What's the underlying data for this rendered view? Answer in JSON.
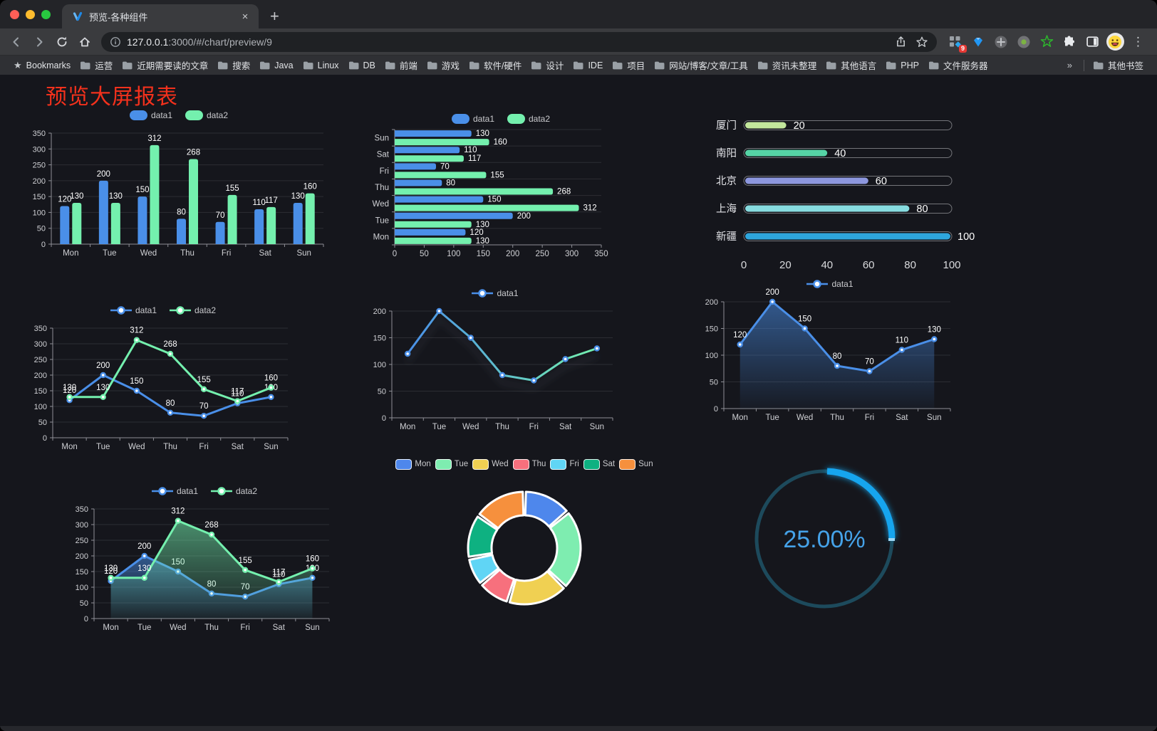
{
  "browser": {
    "tab_title": "预览-各种组件",
    "close_tab": "×",
    "new_tab": "+",
    "url_host": "127.0.0.1",
    "url_rest": ":3000/#/chart/preview/9",
    "ext_badge": "9",
    "bookmarks_label": "Bookmarks",
    "bookmarks": [
      "运营",
      "近期需要读的文章",
      "搜索",
      "Java",
      "Linux",
      "DB",
      "前端",
      "游戏",
      "软件/硬件",
      "设计",
      "IDE",
      "项目",
      "网站/博客/文章/工具",
      "资讯未整理",
      "其他语言",
      "PHP",
      "文件服务器"
    ],
    "overflow": "»",
    "other_bookmarks": "其他书签"
  },
  "page": {
    "title": "预览大屏报表",
    "title_color": "#f3311c",
    "background": "#15161c"
  },
  "chart_data": [
    {
      "id": "bar-vertical",
      "type": "bar",
      "categories": [
        "Mon",
        "Tue",
        "Wed",
        "Thu",
        "Fri",
        "Sat",
        "Sun"
      ],
      "series": [
        {
          "name": "data1",
          "color": "#4a8fe8",
          "values": [
            120,
            200,
            150,
            80,
            70,
            110,
            130
          ]
        },
        {
          "name": "data2",
          "color": "#74f0ae",
          "values": [
            130,
            130,
            312,
            268,
            155,
            117,
            160
          ]
        }
      ],
      "ylim": [
        0,
        350
      ],
      "ytick": 50,
      "grid": true,
      "labels": true,
      "legend": {
        "position": "top",
        "type": "roundRect",
        "items": [
          {
            "label": "data1",
            "color": "#4a8fe8"
          },
          {
            "label": "data2",
            "color": "#74f0ae"
          }
        ]
      }
    },
    {
      "id": "bar-horizontal",
      "type": "bar-horizontal",
      "categories": [
        "Mon",
        "Tue",
        "Wed",
        "Thu",
        "Fri",
        "Sat",
        "Sun"
      ],
      "series": [
        {
          "name": "data1",
          "color": "#4a8fe8",
          "values": [
            120,
            200,
            150,
            80,
            70,
            110,
            130
          ]
        },
        {
          "name": "data2",
          "color": "#74f0ae",
          "values": [
            130,
            130,
            312,
            268,
            155,
            117,
            160
          ]
        }
      ],
      "xlim": [
        0,
        350
      ],
      "xtick": 50,
      "grid": true,
      "labels": true,
      "legend": {
        "position": "top",
        "type": "roundRect",
        "items": [
          {
            "label": "data1",
            "color": "#4a8fe8"
          },
          {
            "label": "data2",
            "color": "#74f0ae"
          }
        ]
      }
    },
    {
      "id": "capsule",
      "type": "bar-capsule",
      "categories": [
        "厦门",
        "南阳",
        "北京",
        "上海",
        "新疆"
      ],
      "values": [
        20,
        40,
        60,
        80,
        100
      ],
      "colors": [
        "#c3e79c",
        "#55d3a5",
        "#8d97de",
        "#87dce0",
        "#2ea6dd"
      ],
      "xlim": [
        0,
        100
      ],
      "ticks": [
        0,
        20,
        40,
        60,
        80,
        100
      ],
      "labels": true
    },
    {
      "id": "line-two",
      "type": "line",
      "categories": [
        "Mon",
        "Tue",
        "Wed",
        "Thu",
        "Fri",
        "Sat",
        "Sun"
      ],
      "series": [
        {
          "name": "data1",
          "color": "#4a8fe8",
          "values": [
            120,
            200,
            150,
            80,
            70,
            110,
            130
          ]
        },
        {
          "name": "data2",
          "color": "#74f0ae",
          "values": [
            130,
            130,
            312,
            268,
            155,
            117,
            160
          ]
        }
      ],
      "ylim": [
        0,
        350
      ],
      "ytick": 50,
      "grid": true,
      "labels": true,
      "legend": {
        "position": "top",
        "type": "line",
        "items": [
          {
            "label": "data1",
            "color": "#4a8fe8"
          },
          {
            "label": "data2",
            "color": "#74f0ae"
          }
        ]
      }
    },
    {
      "id": "line-gradient",
      "type": "line",
      "categories": [
        "Mon",
        "Tue",
        "Wed",
        "Thu",
        "Fri",
        "Sat",
        "Sun"
      ],
      "series": [
        {
          "name": "data1",
          "color": "#4a8fe8",
          "gradient": [
            "#4a8fe8",
            "#74f0ae"
          ],
          "values": [
            120,
            200,
            150,
            80,
            70,
            110,
            130
          ]
        }
      ],
      "ylim": [
        0,
        200
      ],
      "ytick": 50,
      "grid": true,
      "labels": false,
      "shadow": true,
      "legend": {
        "position": "top",
        "type": "line",
        "items": [
          {
            "label": "data1",
            "color": "#4a8fe8"
          }
        ]
      }
    },
    {
      "id": "area-one",
      "type": "line",
      "categories": [
        "Mon",
        "Tue",
        "Wed",
        "Thu",
        "Fri",
        "Sat",
        "Sun"
      ],
      "series": [
        {
          "name": "data1",
          "color": "#4a8fe8",
          "area": true,
          "values": [
            120,
            200,
            150,
            80,
            70,
            110,
            130
          ]
        }
      ],
      "ylim": [
        0,
        200
      ],
      "ytick": 50,
      "grid": true,
      "labels": true,
      "legend": {
        "position": "top",
        "type": "line",
        "items": [
          {
            "label": "data1",
            "color": "#4a8fe8"
          }
        ]
      }
    },
    {
      "id": "area-two",
      "type": "line",
      "categories": [
        "Mon",
        "Tue",
        "Wed",
        "Thu",
        "Fri",
        "Sat",
        "Sun"
      ],
      "series": [
        {
          "name": "data1",
          "color": "#4a8fe8",
          "area": true,
          "values": [
            120,
            200,
            150,
            80,
            70,
            110,
            130
          ]
        },
        {
          "name": "data2",
          "color": "#74f0ae",
          "area": true,
          "values": [
            130,
            130,
            312,
            268,
            155,
            117,
            160
          ]
        }
      ],
      "ylim": [
        0,
        350
      ],
      "ytick": 50,
      "grid": true,
      "labels": true,
      "legend": {
        "position": "top",
        "type": "line",
        "items": [
          {
            "label": "data1",
            "color": "#4a8fe8"
          },
          {
            "label": "data2",
            "color": "#74f0ae"
          }
        ]
      }
    },
    {
      "id": "pie",
      "type": "pie",
      "categories": [
        "Mon",
        "Tue",
        "Wed",
        "Thu",
        "Fri",
        "Sat",
        "Sun"
      ],
      "values": [
        120,
        200,
        150,
        80,
        70,
        110,
        130
      ],
      "colors": [
        "#4e87ec",
        "#7eedb0",
        "#f0d052",
        "#f7707d",
        "#60d5f5",
        "#0eb181",
        "#f6903d"
      ],
      "legend": {
        "position": "top",
        "type": "pie",
        "items": [
          {
            "label": "Mon",
            "color": "#4e87ec"
          },
          {
            "label": "Tue",
            "color": "#7eedb0"
          },
          {
            "label": "Wed",
            "color": "#f0d052"
          },
          {
            "label": "Thu",
            "color": "#f7707d"
          },
          {
            "label": "Fri",
            "color": "#60d5f5"
          },
          {
            "label": "Sat",
            "color": "#0eb181"
          },
          {
            "label": "Sun",
            "color": "#f6903d"
          }
        ]
      }
    },
    {
      "id": "gauge",
      "type": "gauge",
      "value": 25,
      "display": "25.00%",
      "color": "#16a5ee",
      "track_color": "#1d4a5c",
      "text_color": "#45a2e8"
    }
  ]
}
